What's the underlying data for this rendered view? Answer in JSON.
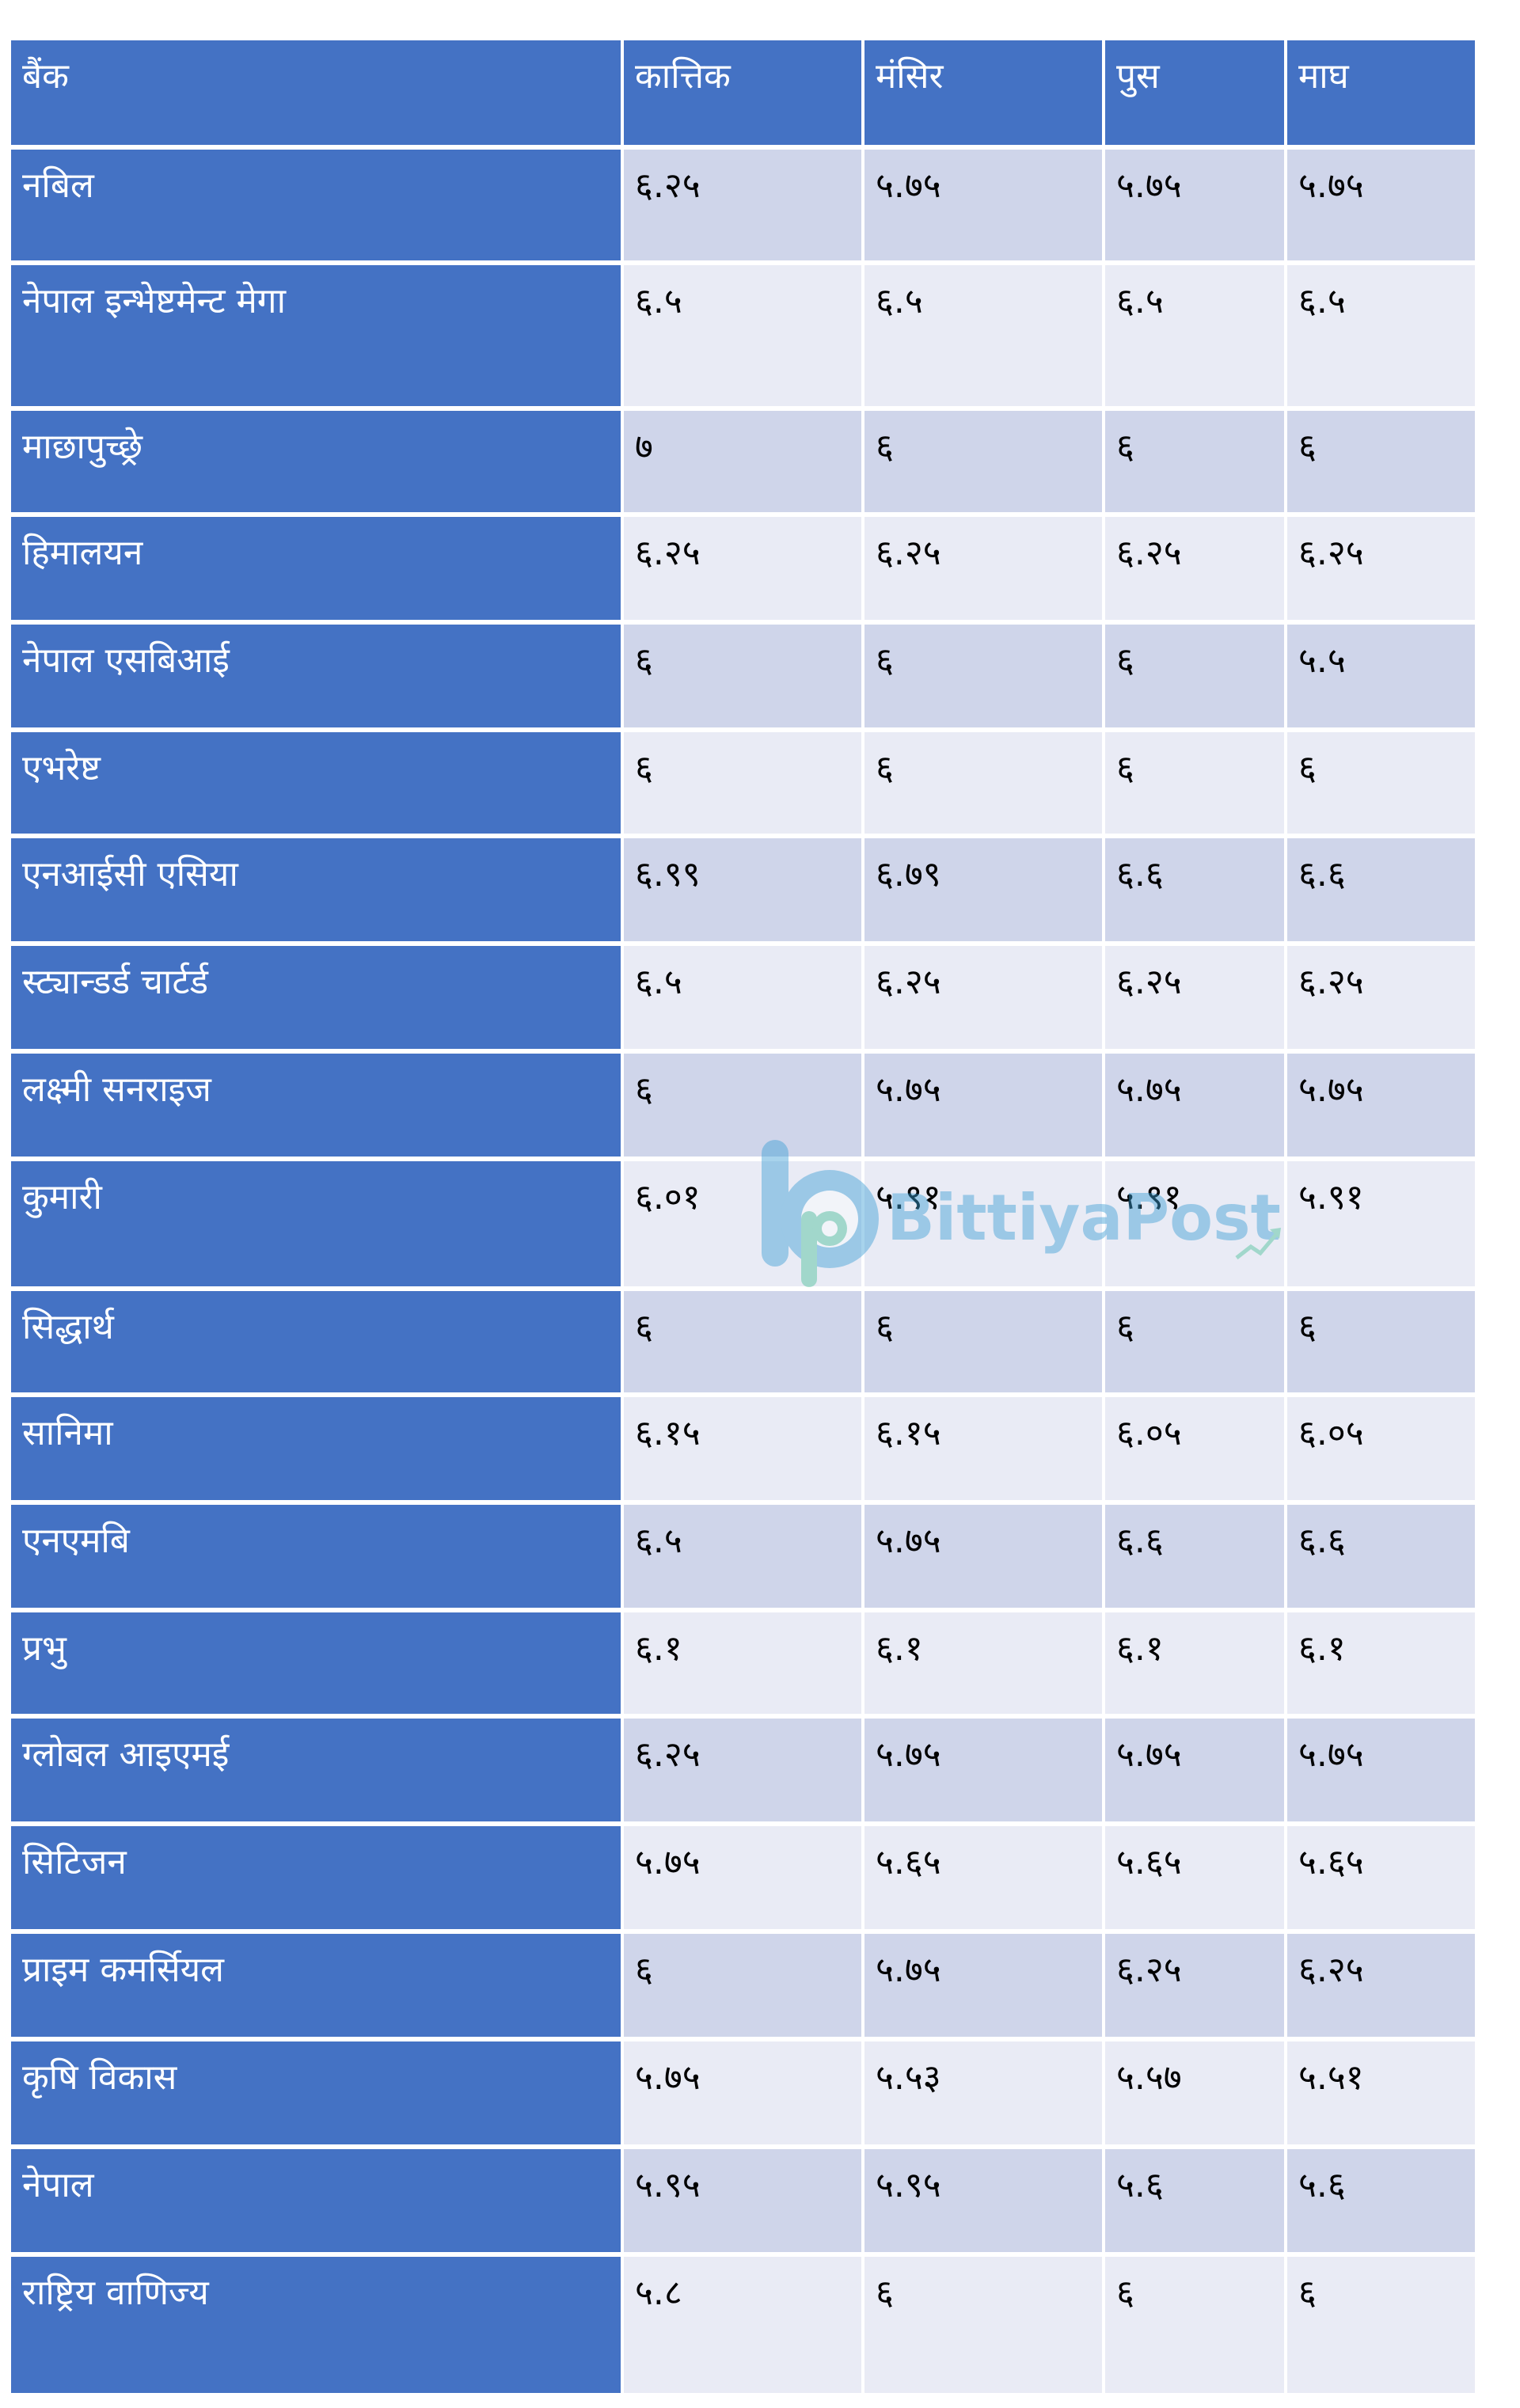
{
  "table": {
    "headers": [
      "बैंक",
      "कात्तिक",
      "मंसिर",
      "पुस",
      "माघ"
    ],
    "rows": [
      {
        "bank": "नबिल",
        "values": [
          "६.२५",
          "५.७५",
          "५.७५",
          "५.७५"
        ]
      },
      {
        "bank": "नेपाल इन्भेष्टमेन्ट मेगा",
        "values": [
          "६.५",
          "६.५",
          "६.५",
          "६.५"
        ]
      },
      {
        "bank": "माछापुच्छ्रे",
        "values": [
          "७",
          "६",
          "६",
          "६"
        ]
      },
      {
        "bank": "हिमालयन",
        "values": [
          "६.२५",
          "६.२५",
          "६.२५",
          "६.२५"
        ]
      },
      {
        "bank": "नेपाल एसबिआई",
        "values": [
          "६",
          "६",
          "६",
          "५.५"
        ]
      },
      {
        "bank": "एभरेष्ट",
        "values": [
          "६",
          "६",
          "६",
          "६"
        ]
      },
      {
        "bank": "एनआईसी एसिया",
        "values": [
          "६.९९",
          "६.७९",
          "६.६",
          "६.६"
        ]
      },
      {
        "bank": "स्ट्यान्डर्ड चार्टर्ड",
        "values": [
          "६.५",
          "६.२५",
          "६.२५",
          "६.२५"
        ]
      },
      {
        "bank": "लक्ष्मी सनराइज",
        "values": [
          "६",
          "५.७५",
          "५.७५",
          "५.७५"
        ]
      },
      {
        "bank": "कुमारी",
        "values": [
          "६.०१",
          "५.९१",
          "५.९१",
          "५.९१"
        ]
      },
      {
        "bank": "सिद्धार्थ",
        "values": [
          "६",
          "६",
          "६",
          "६"
        ]
      },
      {
        "bank": "सानिमा",
        "values": [
          "६.१५",
          "६.१५",
          "६.०५",
          "६.०५"
        ]
      },
      {
        "bank": "एनएमबि",
        "values": [
          "६.५",
          "५.७५",
          "६.६",
          "६.६"
        ]
      },
      {
        "bank": "प्रभु",
        "values": [
          "६.१",
          "६.१",
          "६.१",
          "६.१"
        ]
      },
      {
        "bank": "ग्लोबल आइएमई",
        "values": [
          "६.२५",
          "५.७५",
          "५.७५",
          "५.७५"
        ]
      },
      {
        "bank": "सिटिजन",
        "values": [
          "५.७५",
          "५.६५",
          "५.६५",
          "५.६५"
        ]
      },
      {
        "bank": "प्राइम कमर्सियल",
        "values": [
          "६",
          "५.७५",
          "६.२५",
          "६.२५"
        ]
      },
      {
        "bank": "कृषि विकास",
        "values": [
          "५.७५",
          "५.५३",
          "५.५७",
          "५.५१"
        ]
      },
      {
        "bank": "नेपाल",
        "values": [
          "५.९५",
          "५.९५",
          "५.६",
          "५.६"
        ]
      },
      {
        "bank": "राष्ट्रिय वाणिज्य",
        "values": [
          "५.८",
          "६",
          "६",
          "६"
        ]
      }
    ]
  },
  "watermark": {
    "text": "BittiyaPost",
    "icon": "bittiyapost-logo-icon",
    "color": "#3d9fd6"
  },
  "colors": {
    "header_bg": "#4472c4",
    "bank_column_bg": "#4472c4",
    "row_band_dark": "#cfd5ea",
    "row_band_light": "#e9ebf5"
  }
}
